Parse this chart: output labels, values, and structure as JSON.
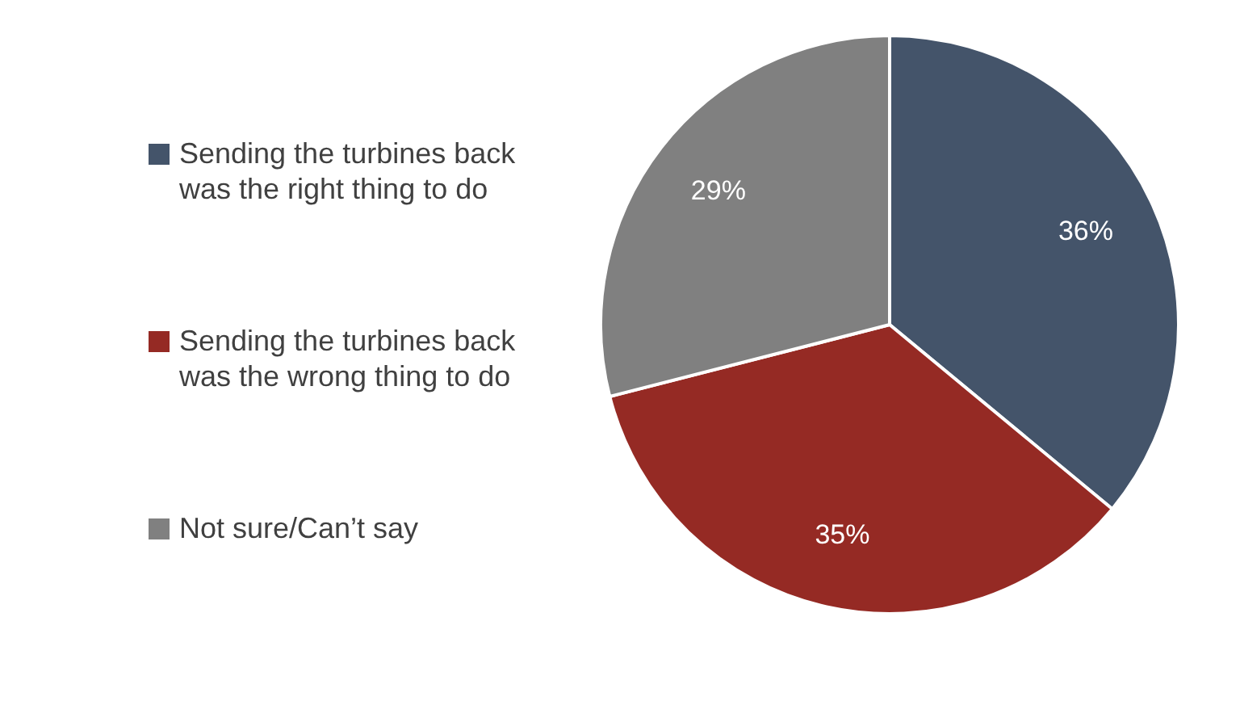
{
  "chart_data": {
    "type": "pie",
    "categories": [
      "Sending the turbines back was the right thing to do",
      "Sending the turbines back was the wrong thing to do",
      "Not sure/Can’t say"
    ],
    "values": [
      36,
      35,
      29
    ],
    "colors": [
      "#44546a",
      "#952a24",
      "#808080"
    ],
    "value_labels": [
      "36%",
      "35%",
      "29%"
    ],
    "legend": "left"
  }
}
